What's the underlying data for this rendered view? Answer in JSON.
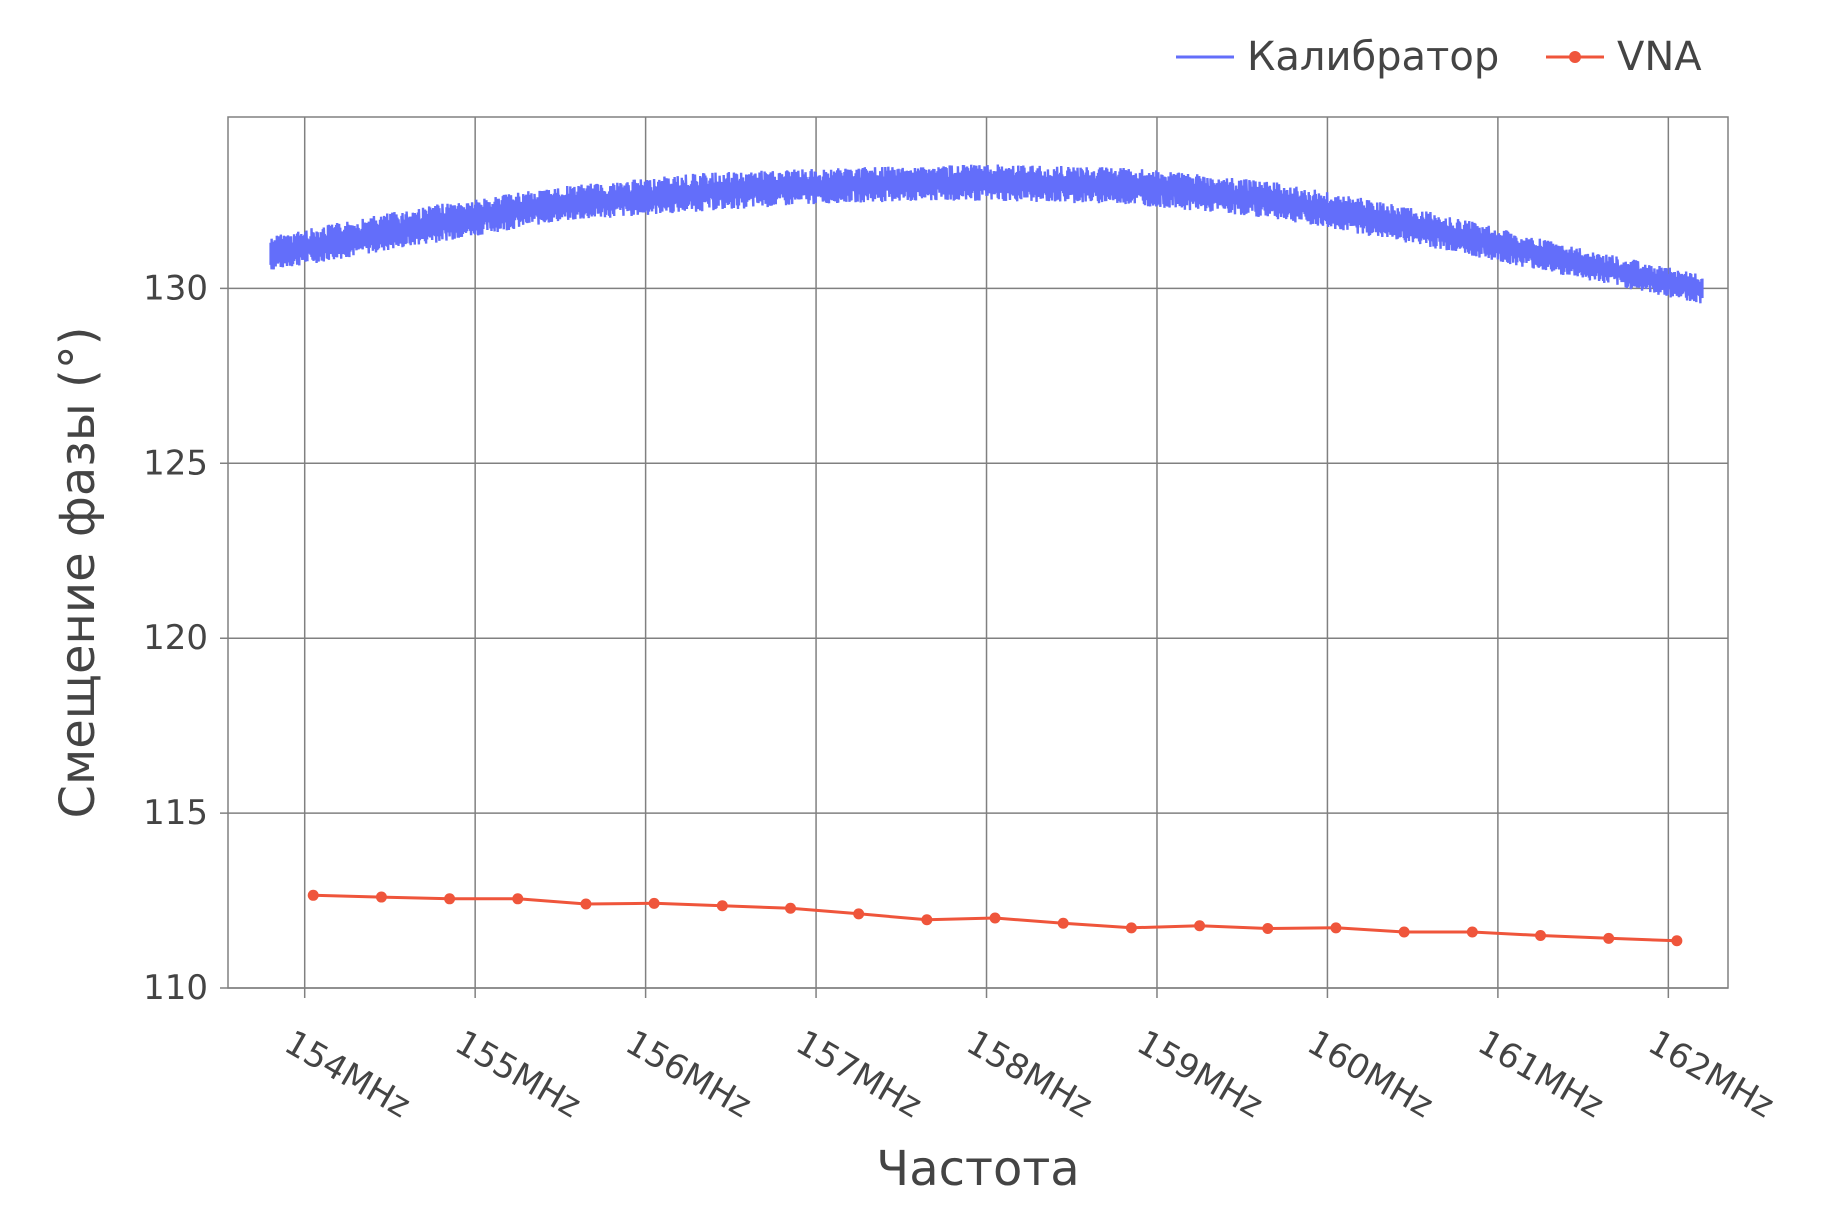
{
  "chart_data": {
    "type": "line",
    "title": "",
    "xlabel": "Частота",
    "ylabel": "Смещение фазы (°)",
    "xlim": [
      153.55,
      162.35
    ],
    "ylim": [
      110,
      134.9
    ],
    "x_unit": "MHz",
    "x_ticks": [
      154,
      155,
      156,
      157,
      158,
      159,
      160,
      161,
      162
    ],
    "x_tick_labels": [
      "154MHz",
      "155MHz",
      "156MHz",
      "157MHz",
      "158MHz",
      "159MHz",
      "160MHz",
      "161MHz",
      "162MHz"
    ],
    "y_ticks": [
      110,
      115,
      120,
      125,
      130
    ],
    "y_tick_labels": [
      "110",
      "115",
      "120",
      "125",
      "130"
    ],
    "grid": true,
    "legend_position": "top-right",
    "series": [
      {
        "name": "Калибратор",
        "color": "#636efa",
        "mode": "lines",
        "x_range": [
          153.8,
          162.2
        ],
        "band_ymin": [
          130.5,
          131.2,
          131.9,
          132.2,
          132.45,
          132.5,
          132.4,
          132.0,
          131.25,
          130.4,
          129.55
        ],
        "band_ymax": [
          131.5,
          132.3,
          132.9,
          133.3,
          133.45,
          133.55,
          133.45,
          133.05,
          132.3,
          131.3,
          130.4
        ],
        "band_x": [
          153.8,
          154.64,
          155.48,
          156.32,
          157.16,
          158.0,
          158.84,
          159.68,
          160.52,
          161.36,
          162.2
        ],
        "y": [
          131.0,
          131.75,
          132.4,
          132.75,
          132.95,
          133.0,
          132.9,
          132.55,
          131.8,
          130.85,
          130.0
        ]
      },
      {
        "name": "VNA",
        "color": "#ef553b",
        "mode": "lines+markers",
        "x": [
          154.05,
          154.45,
          154.85,
          155.25,
          155.65,
          156.05,
          156.45,
          156.85,
          157.25,
          157.65,
          158.05,
          158.45,
          158.85,
          159.25,
          159.65,
          160.05,
          160.45,
          160.85,
          161.25,
          161.65,
          162.05
        ],
        "y": [
          112.65,
          112.6,
          112.55,
          112.55,
          112.4,
          112.42,
          112.35,
          112.28,
          112.12,
          111.95,
          112.0,
          111.85,
          111.72,
          111.78,
          111.7,
          111.72,
          111.6,
          111.6,
          111.5,
          111.42,
          111.35
        ]
      }
    ]
  }
}
